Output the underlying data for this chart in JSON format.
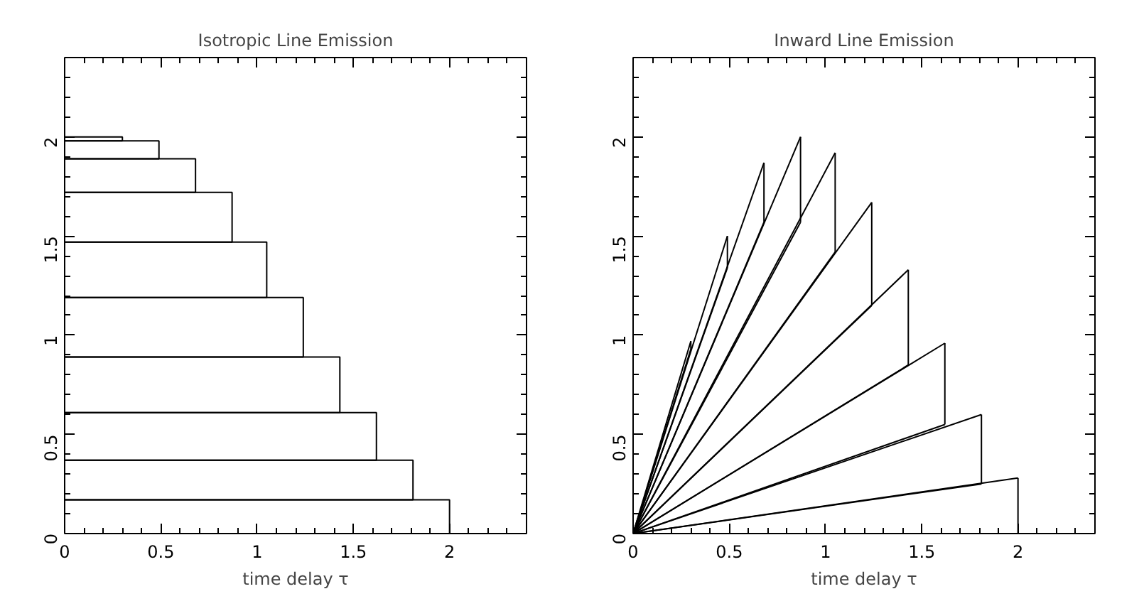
{
  "chart_data": [
    {
      "type": "histogram",
      "orientation": "horizontal",
      "title": "Isotropic Line Emission",
      "xlabel": "time delay τ",
      "bins": [
        0,
        0.17,
        0.37,
        0.61,
        0.89,
        1.19,
        1.47,
        1.72,
        1.89,
        1.98,
        2.0
      ],
      "values": [
        2.0,
        1.81,
        1.62,
        1.43,
        1.24,
        1.05,
        0.87,
        0.68,
        0.49,
        0.3
      ],
      "color": "#000000",
      "xlim": [
        0,
        2.4
      ],
      "xticks": [
        0,
        0.5,
        1,
        1.5,
        2
      ],
      "ylim": [
        0,
        2.4
      ],
      "yticks": [
        0,
        0.5,
        1,
        1.5,
        2
      ]
    },
    {
      "type": "line",
      "title": "Inward Line Emission",
      "xlabel": "time delay τ",
      "series": [
        {
          "color": "#000000",
          "x": [
            0,
            2.0
          ],
          "values": [
            0,
            0.28
          ],
          "errors": [
            null,
            [
              0,
              0.28
            ]
          ]
        },
        {
          "color": "#000000",
          "x": [
            0,
            1.81
          ],
          "values": [
            0,
            0.6
          ],
          "errors": [
            null,
            [
              0.25,
              0.6
            ]
          ]
        },
        {
          "color": "#000000",
          "x": [
            0,
            1.81
          ],
          "values": [
            0,
            0.25
          ]
        },
        {
          "color": "#000000",
          "x": [
            0,
            1.62
          ],
          "values": [
            0,
            0.96
          ],
          "errors": [
            null,
            [
              0.55,
              0.96
            ]
          ]
        },
        {
          "color": "#000000",
          "x": [
            0,
            1.62
          ],
          "values": [
            0,
            0.55
          ]
        },
        {
          "color": "#000000",
          "x": [
            0,
            1.43
          ],
          "values": [
            0,
            1.33
          ],
          "errors": [
            null,
            [
              0.85,
              1.33
            ]
          ]
        },
        {
          "color": "#000000",
          "x": [
            0,
            1.43
          ],
          "values": [
            0,
            0.85
          ]
        },
        {
          "color": "#000000",
          "x": [
            0,
            1.24
          ],
          "values": [
            0,
            1.67
          ],
          "errors": [
            null,
            [
              1.15,
              1.67
            ]
          ]
        },
        {
          "color": "#000000",
          "x": [
            0,
            1.24
          ],
          "values": [
            0,
            1.15
          ]
        },
        {
          "color": "#000000",
          "x": [
            0,
            1.05
          ],
          "values": [
            0,
            1.92
          ],
          "errors": [
            null,
            [
              1.42,
              1.92
            ]
          ]
        },
        {
          "color": "#000000",
          "x": [
            0,
            1.05
          ],
          "values": [
            0,
            1.42
          ]
        },
        {
          "color": "#000000",
          "x": [
            0,
            0.87
          ],
          "values": [
            0,
            2.0
          ],
          "errors": [
            null,
            [
              1.57,
              2.0
            ]
          ]
        },
        {
          "color": "#000000",
          "x": [
            0,
            0.87
          ],
          "values": [
            0,
            1.57
          ]
        },
        {
          "color": "#000000",
          "x": [
            0,
            0.68
          ],
          "values": [
            0,
            1.87
          ],
          "errors": [
            null,
            [
              1.57,
              1.87
            ]
          ]
        },
        {
          "color": "#000000",
          "x": [
            0,
            0.68
          ],
          "values": [
            0,
            1.57
          ]
        },
        {
          "color": "#000000",
          "x": [
            0,
            0.49
          ],
          "values": [
            0,
            1.5
          ],
          "errors": [
            null,
            [
              1.34,
              1.5
            ]
          ]
        },
        {
          "color": "#000000",
          "x": [
            0,
            0.49
          ],
          "values": [
            0,
            1.34
          ]
        },
        {
          "color": "#000000",
          "x": [
            0,
            0.3
          ],
          "values": [
            0,
            0.97
          ],
          "errors": [
            null,
            [
              0.93,
              0.97
            ]
          ]
        },
        {
          "color": "#000000",
          "x": [
            0,
            0.3
          ],
          "values": [
            0,
            0.93
          ]
        }
      ],
      "xlim": [
        0,
        2.4
      ],
      "xticks": [
        0,
        0.5,
        1,
        1.5,
        2
      ],
      "ylim": [
        0,
        2.4
      ],
      "yticks": [
        0,
        0.5,
        1,
        1.5,
        2
      ]
    }
  ]
}
